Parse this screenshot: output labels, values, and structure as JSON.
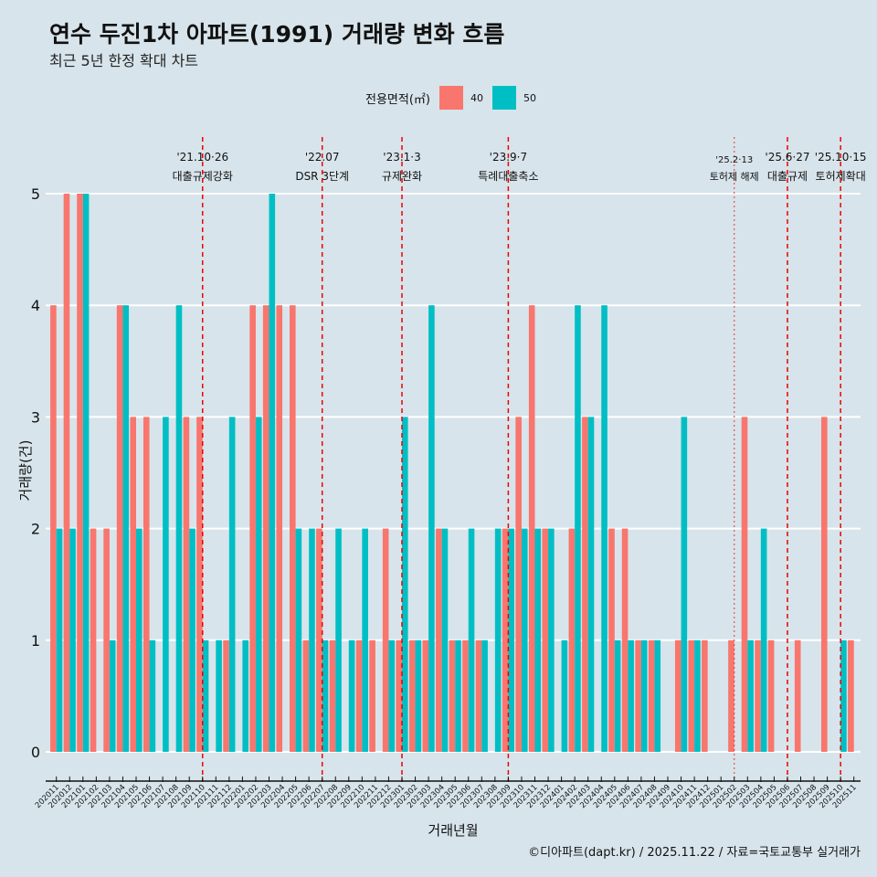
{
  "title": "연수 두진1차 아파트(1991) 거래량 변화 흐름",
  "subtitle": "최근 5년 한정 확대 차트",
  "caption": "©디아파트(dapt.kr) / 2025.11.22 / 자료=국토교통부 실거래가",
  "legend": {
    "title": "전용면적(㎡)",
    "items": [
      {
        "label": "40",
        "color": "#F8766D"
      },
      {
        "label": "50",
        "color": "#00BFC4"
      }
    ]
  },
  "chart_data": {
    "type": "bar",
    "title": "연수 두진1차 아파트(1991) 거래량 변화 흐름",
    "xlabel": "거래년월",
    "ylabel": "거래량(건)",
    "ylim": [
      0,
      5
    ],
    "yticks": [
      "0",
      "1",
      "2",
      "3",
      "4",
      "5"
    ],
    "legend_position": "top",
    "categories": [
      "202011",
      "202012",
      "202101",
      "202102",
      "202103",
      "202104",
      "202105",
      "202106",
      "202107",
      "202108",
      "202109",
      "202110",
      "202111",
      "202112",
      "202201",
      "202202",
      "202203",
      "202204",
      "202205",
      "202206",
      "202207",
      "202208",
      "202209",
      "202210",
      "202211",
      "202212",
      "202301",
      "202302",
      "202303",
      "202304",
      "202305",
      "202306",
      "202307",
      "202308",
      "202309",
      "202310",
      "202311",
      "202312",
      "202401",
      "202402",
      "202403",
      "202404",
      "202405",
      "202406",
      "202407",
      "202408",
      "202409",
      "202410",
      "202411",
      "202412",
      "202501",
      "202502",
      "202503",
      "202504",
      "202505",
      "202506",
      "202507",
      "202508",
      "202509",
      "202510",
      "202511"
    ],
    "series": [
      {
        "name": "40",
        "color": "#F8766D",
        "values": [
          4,
          5,
          5,
          2,
          2,
          4,
          3,
          3,
          0,
          0,
          3,
          3,
          0,
          1,
          0,
          4,
          4,
          4,
          4,
          1,
          2,
          1,
          0,
          1,
          1,
          2,
          1,
          1,
          1,
          2,
          1,
          1,
          1,
          0,
          2,
          3,
          4,
          2,
          0,
          2,
          3,
          0,
          2,
          2,
          1,
          1,
          0,
          1,
          1,
          1,
          0,
          1,
          3,
          1,
          1,
          0,
          1,
          0,
          3,
          0,
          1
        ]
      },
      {
        "name": "50",
        "color": "#00BFC4",
        "values": [
          2,
          2,
          5,
          0,
          1,
          4,
          2,
          1,
          3,
          4,
          2,
          1,
          1,
          3,
          1,
          3,
          5,
          0,
          2,
          2,
          1,
          2,
          1,
          2,
          0,
          1,
          3,
          1,
          4,
          2,
          1,
          2,
          1,
          2,
          2,
          2,
          2,
          2,
          1,
          4,
          3,
          4,
          1,
          1,
          1,
          1,
          0,
          3,
          1,
          0,
          0,
          0,
          1,
          2,
          0,
          0,
          0,
          0,
          0,
          1,
          0
        ]
      }
    ],
    "annotations": [
      {
        "month": "202110",
        "date": "'21.10·26",
        "label": "대출규제강화",
        "style": "dashed"
      },
      {
        "month": "202207",
        "date": "'22.07",
        "label": "DSR 3단계",
        "style": "dashed"
      },
      {
        "month": "202301",
        "date": "'23.1·3",
        "label": "규제완화",
        "style": "dashed"
      },
      {
        "month": "202309",
        "date": "'23.9·7",
        "label": "특례대출축소",
        "style": "dashed"
      },
      {
        "month": "202502",
        "date": "'25.2·13",
        "label": "토허제 해제",
        "style": "dotted"
      },
      {
        "month": "202506",
        "date": "'25.6·27",
        "label": "대출규제",
        "style": "dashed"
      },
      {
        "month": "202510",
        "date": "'25.10·15",
        "label": "토허제확대",
        "style": "dashed"
      }
    ]
  }
}
